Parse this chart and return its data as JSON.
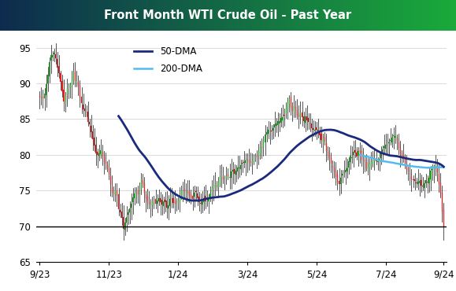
{
  "title": "Front Month WTI Crude Oil - Past Year",
  "title_grad_left": "#0d2b4e",
  "title_grad_right": "#1aaa3a",
  "title_text_color": "#ffffff",
  "ylim": [
    65,
    97
  ],
  "yticks": [
    65,
    70,
    75,
    80,
    85,
    90,
    95
  ],
  "hline_y": 70,
  "dma50_color": "#1a2a7c",
  "dma200_color": "#55bbee",
  "candle_up_color": "#22aa22",
  "candle_down_color": "#dd2222",
  "candle_wick_color": "#111111",
  "legend_labels": [
    "50-DMA",
    "200-DMA"
  ],
  "xtick_labels": [
    "9/23",
    "11/23",
    "1/24",
    "3/24",
    "5/24",
    "7/24",
    "9/24"
  ],
  "xtick_positions": [
    0,
    43,
    86,
    129,
    172,
    215,
    251
  ],
  "n_days": 252
}
